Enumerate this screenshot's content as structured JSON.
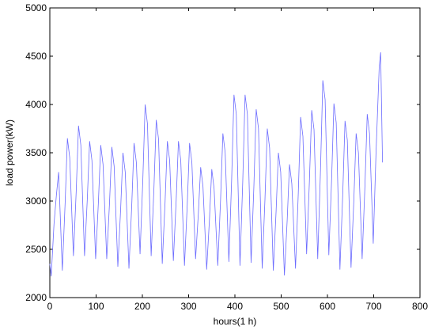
{
  "chart_data": {
    "type": "line",
    "xlabel": "hours(1 h)",
    "ylabel": "load power(kW)",
    "x": [
      0,
      3,
      9,
      14,
      19,
      27,
      33,
      38,
      43,
      51,
      57,
      62,
      67,
      75,
      81,
      86,
      91,
      99,
      105,
      110,
      115,
      123,
      129,
      134,
      139,
      147,
      153,
      158,
      163,
      171,
      177,
      182,
      187,
      195,
      201,
      206,
      211,
      219,
      225,
      230,
      235,
      243,
      249,
      254,
      259,
      267,
      273,
      278,
      283,
      291,
      297,
      302,
      307,
      315,
      321,
      326,
      331,
      339,
      345,
      350,
      355,
      363,
      369,
      374,
      379,
      387,
      393,
      398,
      403,
      411,
      417,
      422,
      427,
      435,
      441,
      446,
      451,
      459,
      465,
      470,
      475,
      483,
      489,
      494,
      499,
      507,
      513,
      518,
      523,
      531,
      537,
      542,
      547,
      555,
      561,
      566,
      571,
      579,
      585,
      590,
      595,
      603,
      609,
      614,
      619,
      627,
      633,
      638,
      643,
      651,
      657,
      662,
      667,
      675,
      681,
      686,
      691,
      699,
      705,
      712,
      715,
      719
    ],
    "series": [
      {
        "color": "#6b6bff",
        "values": [
          2350,
          2220,
          2760,
          3050,
          3300,
          2280,
          2970,
          3650,
          3450,
          2430,
          3100,
          3780,
          3580,
          2430,
          3020,
          3620,
          3420,
          2400,
          2990,
          3580,
          3380,
          2400,
          2980,
          3560,
          3360,
          2320,
          2910,
          3500,
          3300,
          2300,
          2950,
          3600,
          3400,
          2450,
          3220,
          4000,
          3800,
          2430,
          3130,
          3840,
          3640,
          2350,
          2980,
          3620,
          3420,
          2380,
          3000,
          3620,
          3420,
          2330,
          2960,
          3600,
          3400,
          2400,
          2870,
          3350,
          3150,
          2290,
          2810,
          3330,
          3130,
          2330,
          3010,
          3700,
          3500,
          2370,
          3230,
          4100,
          3900,
          2330,
          3210,
          4100,
          3900,
          2360,
          3150,
          3950,
          3750,
          2300,
          3020,
          3750,
          3550,
          2280,
          2890,
          3500,
          3300,
          2230,
          2800,
          3380,
          3180,
          2300,
          3080,
          3870,
          3670,
          2450,
          3200,
          3940,
          3740,
          2400,
          3320,
          4250,
          4050,
          2440,
          3220,
          4010,
          3810,
          2290,
          3060,
          3830,
          3630,
          2310,
          3000,
          3700,
          3500,
          2400,
          3150,
          3900,
          3700,
          2560,
          3500,
          4400,
          4540,
          3400
        ]
      }
    ],
    "xlim": [
      0,
      800
    ],
    "xticks": [
      0,
      100,
      200,
      300,
      400,
      500,
      600,
      700,
      800
    ],
    "ylim": [
      2000,
      5000
    ],
    "yticks": [
      2000,
      2500,
      3000,
      3500,
      4000,
      4500,
      5000
    ]
  }
}
